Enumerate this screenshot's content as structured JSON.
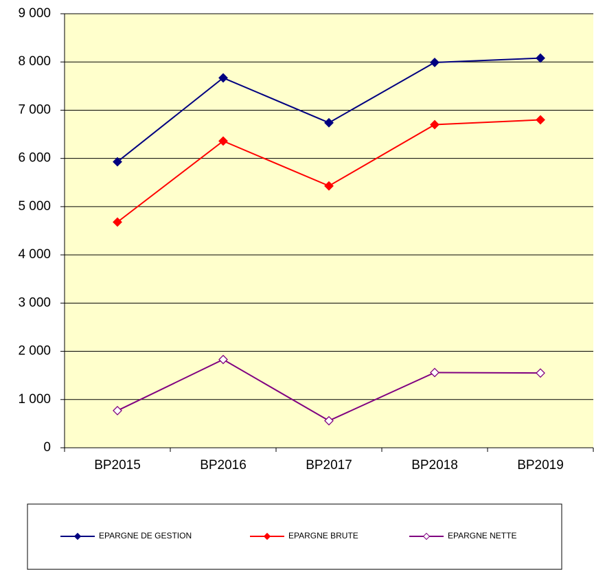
{
  "chart_data": {
    "type": "line",
    "categories": [
      "BP2015",
      "BP2016",
      "BP2017",
      "BP2018",
      "BP2019"
    ],
    "series": [
      {
        "name": "EPARGNE DE GESTION",
        "color": "#000080",
        "marker": "filled",
        "values": [
          5930,
          7670,
          6740,
          7990,
          8080
        ]
      },
      {
        "name": "EPARGNE BRUTE",
        "color": "#ff0000",
        "marker": "filled",
        "values": [
          4680,
          6360,
          5430,
          6700,
          6800
        ]
      },
      {
        "name": "EPARGNE NETTE",
        "color": "#800080",
        "marker": "open",
        "values": [
          770,
          1830,
          560,
          1560,
          1550
        ]
      }
    ],
    "ylim": [
      0,
      9000
    ],
    "yticks": [
      0,
      {
        "value": 1000,
        "label": "1 000"
      },
      {
        "value": 2000,
        "label": "2 000"
      },
      {
        "value": 3000,
        "label": "3 000"
      },
      {
        "value": 4000,
        "label": "4 000"
      },
      {
        "value": 5000,
        "label": "5 000"
      },
      {
        "value": 6000,
        "label": "6 000"
      },
      {
        "value": 7000,
        "label": "7 000"
      },
      {
        "value": 8000,
        "label": "8 000"
      },
      {
        "value": 9000,
        "label": "9 000"
      }
    ],
    "grid": true,
    "plot_background": "#ffffcc",
    "legend": "bottom"
  }
}
